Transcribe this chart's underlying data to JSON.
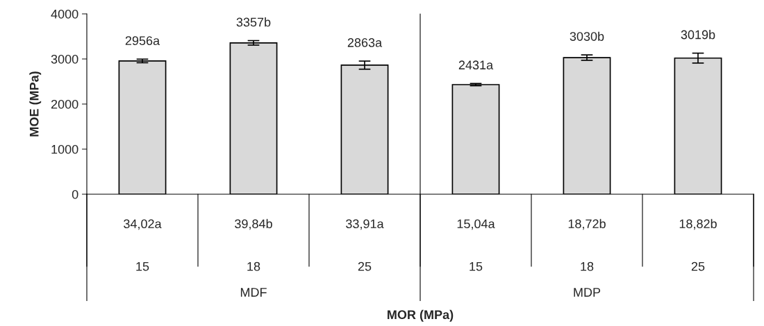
{
  "chart_data": {
    "type": "bar",
    "categories": [
      "15",
      "18",
      "25",
      "15",
      "18",
      "25"
    ],
    "values": [
      2956,
      3357,
      2863,
      2431,
      3030,
      3019
    ],
    "errors": [
      40,
      50,
      90,
      25,
      60,
      110
    ],
    "value_labels": [
      "2956a",
      "3357b",
      "2863a",
      "2431a",
      "3030b",
      "3019b"
    ],
    "color": "#d9d9d9",
    "ylim": [
      0,
      4000
    ],
    "yticks": [
      0,
      1000,
      2000,
      3000,
      4000
    ],
    "ylabel": "MOE (MPa)",
    "xlabel": "MOR (MPa)",
    "annotations": [
      "34,02a",
      "39,84b",
      "33,91a",
      "15,04a",
      "18,72b",
      "18,82b",
      "MDF",
      "MDP"
    ],
    "grid": false
  }
}
